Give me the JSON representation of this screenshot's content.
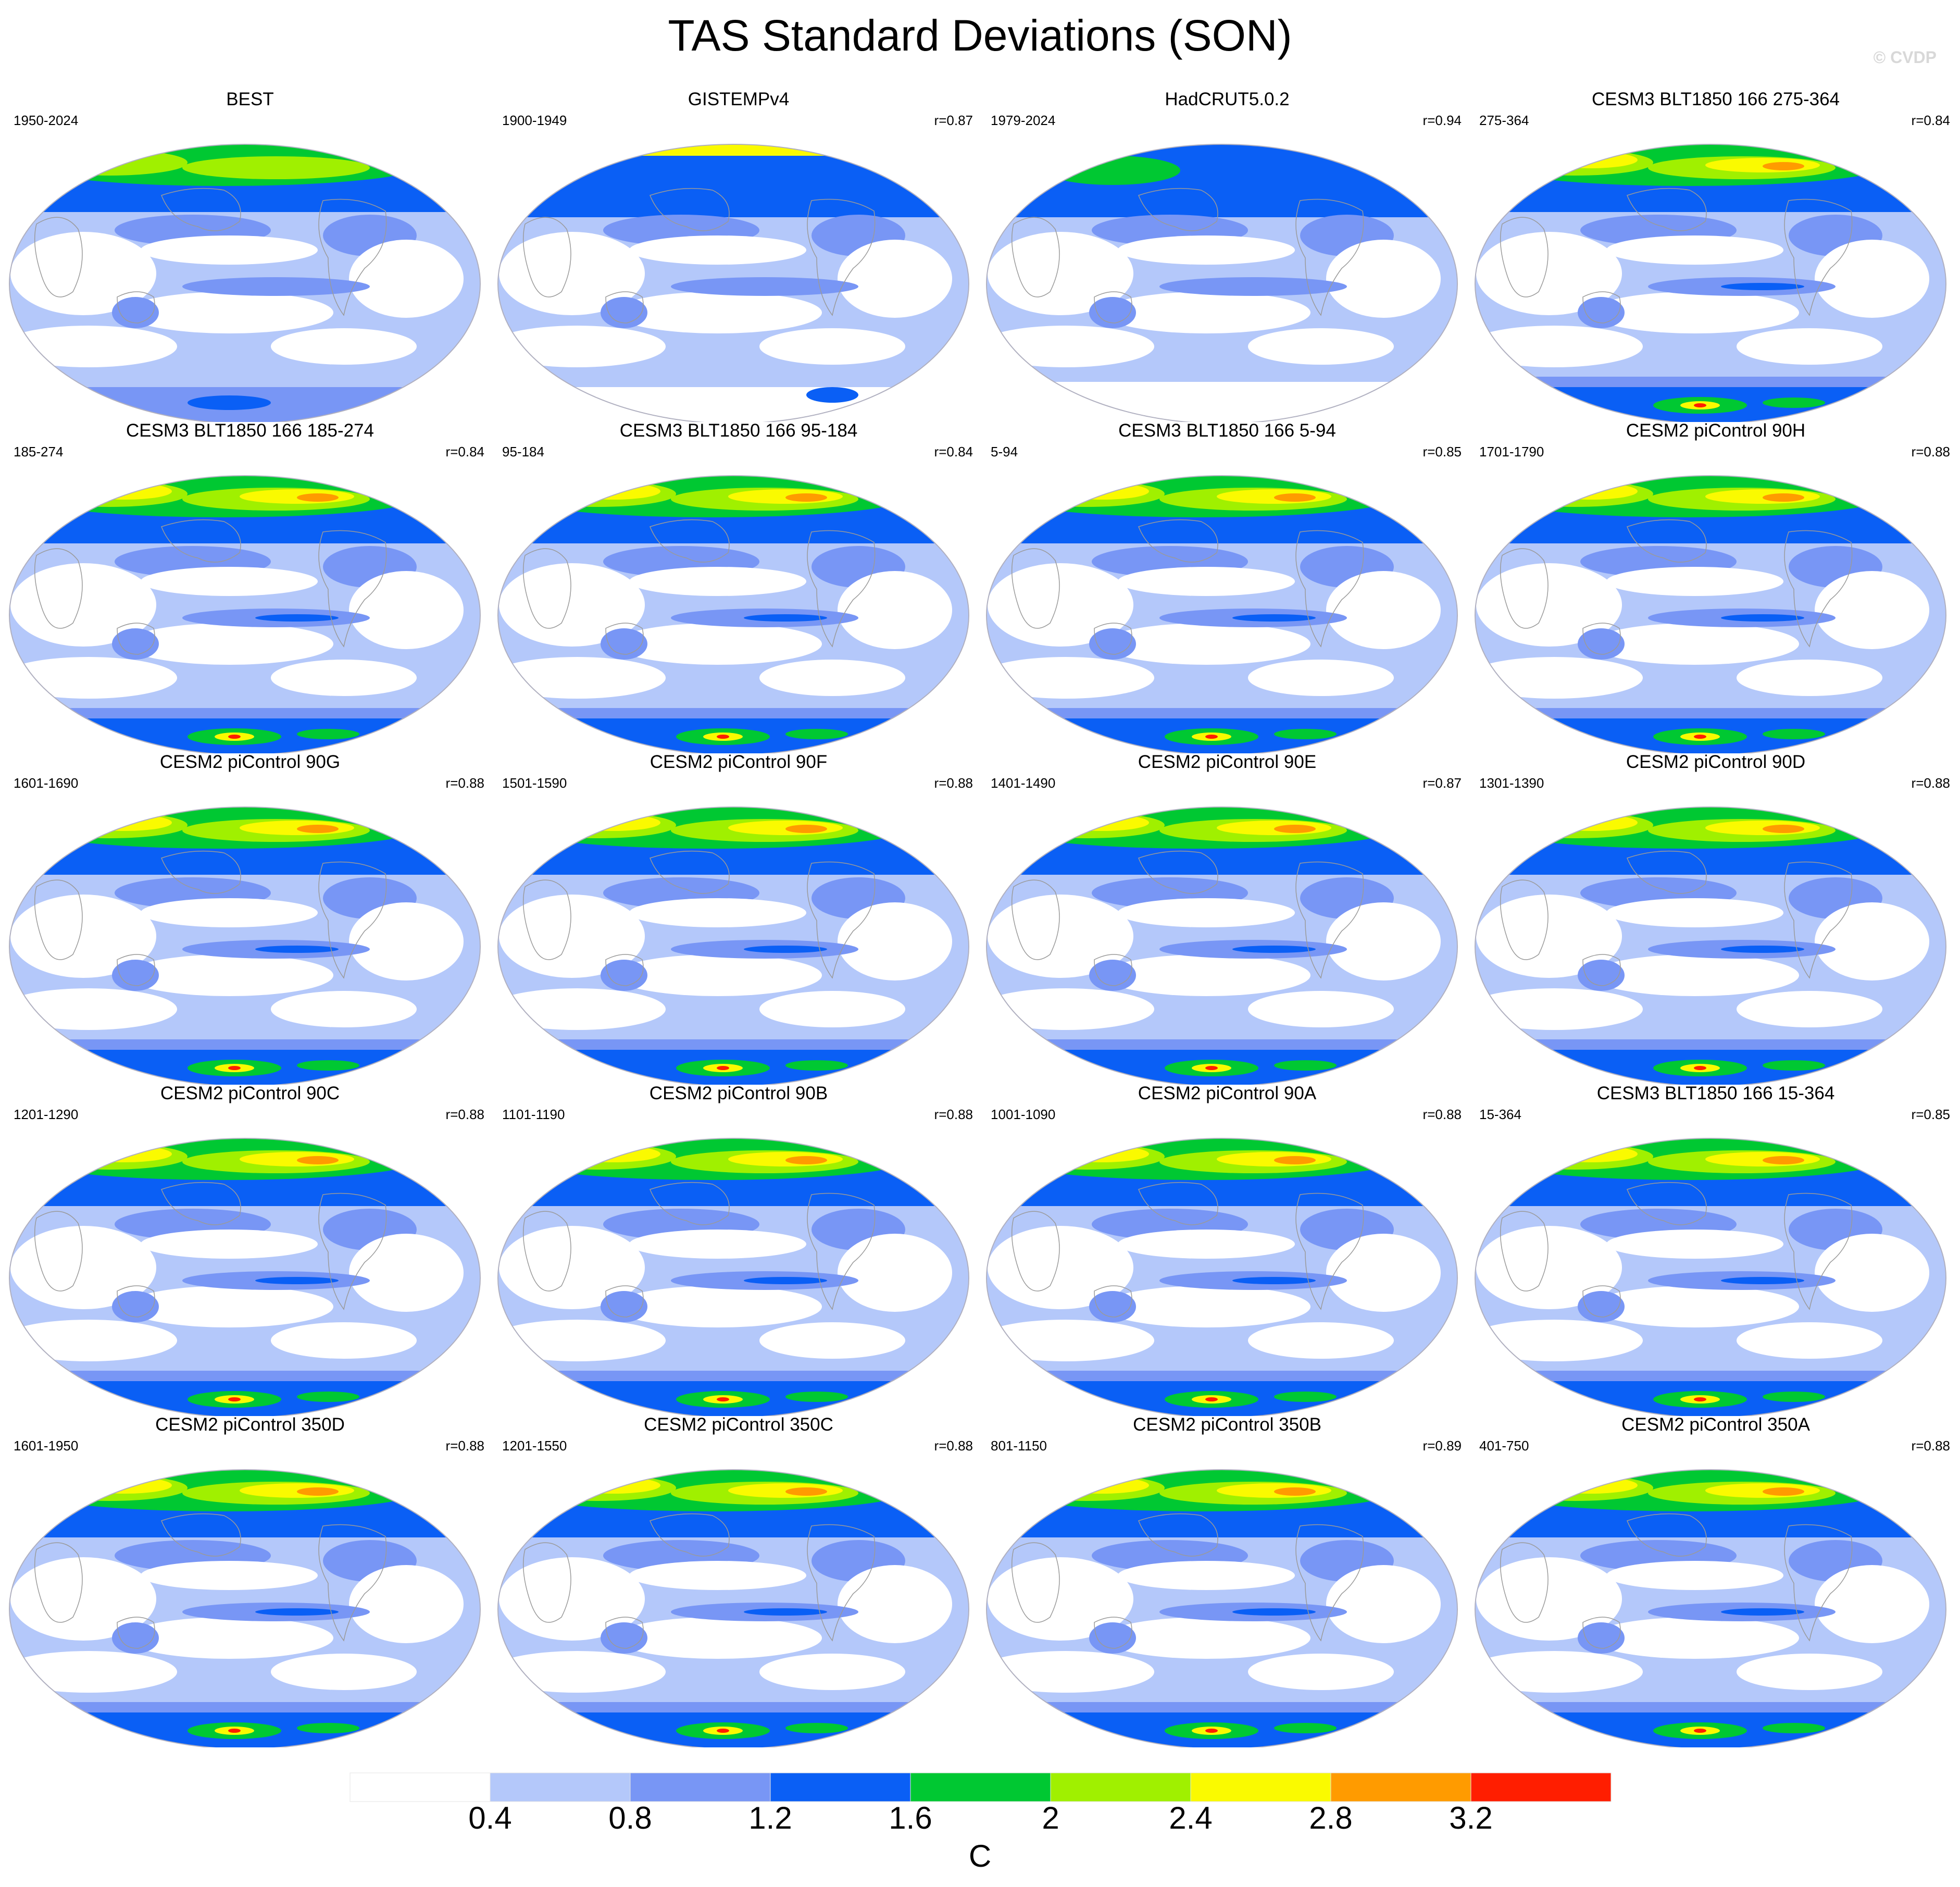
{
  "title": "TAS Standard Deviations (SON)",
  "copyright": "© CVDP",
  "colorbar": {
    "levels": [
      "0.4",
      "0.8",
      "1.2",
      "1.6",
      "2",
      "2.4",
      "2.8",
      "3.2"
    ],
    "colors": [
      "#ffffff",
      "#b4c8fa",
      "#7896f5",
      "#0a5ff5",
      "#00c832",
      "#a0f000",
      "#fafa00",
      "#ff9b00",
      "#ff1e00"
    ],
    "units": "C"
  },
  "panels": [
    {
      "title": "BEST",
      "period": "1950-2024",
      "r": "",
      "style": "best"
    },
    {
      "title": "GISTEMPv4",
      "period": "1900-1949",
      "r": "r=0.87",
      "style": "gis"
    },
    {
      "title": "HadCRUT5.0.2",
      "period": "1979-2024",
      "r": "r=0.94",
      "style": "had"
    },
    {
      "title": "CESM3 BLT1850 166 275-364",
      "period": "275-364",
      "r": "r=0.84",
      "style": "model"
    },
    {
      "title": "CESM3 BLT1850 166 185-274",
      "period": "185-274",
      "r": "r=0.84",
      "style": "model"
    },
    {
      "title": "CESM3 BLT1850 166 95-184",
      "period": "95-184",
      "r": "r=0.84",
      "style": "model"
    },
    {
      "title": "CESM3 BLT1850 166 5-94",
      "period": "5-94",
      "r": "r=0.85",
      "style": "model"
    },
    {
      "title": "CESM2 piControl 90H",
      "period": "1701-1790",
      "r": "r=0.88",
      "style": "model"
    },
    {
      "title": "CESM2 piControl 90G",
      "period": "1601-1690",
      "r": "r=0.88",
      "style": "model"
    },
    {
      "title": "CESM2 piControl 90F",
      "period": "1501-1590",
      "r": "r=0.88",
      "style": "model"
    },
    {
      "title": "CESM2 piControl 90E",
      "period": "1401-1490",
      "r": "r=0.87",
      "style": "model"
    },
    {
      "title": "CESM2 piControl 90D",
      "period": "1301-1390",
      "r": "r=0.88",
      "style": "model"
    },
    {
      "title": "CESM2 piControl 90C",
      "period": "1201-1290",
      "r": "r=0.88",
      "style": "model"
    },
    {
      "title": "CESM2 piControl 90B",
      "period": "1101-1190",
      "r": "r=0.88",
      "style": "model"
    },
    {
      "title": "CESM2 piControl 90A",
      "period": "1001-1090",
      "r": "r=0.88",
      "style": "model"
    },
    {
      "title": "CESM3 BLT1850 166 15-364",
      "period": "15-364",
      "r": "r=0.85",
      "style": "model"
    },
    {
      "title": "CESM2 piControl 350D",
      "period": "1601-1950",
      "r": "r=0.88",
      "style": "model"
    },
    {
      "title": "CESM2 piControl 350C",
      "period": "1201-1550",
      "r": "r=0.88",
      "style": "model"
    },
    {
      "title": "CESM2 piControl 350B",
      "period": "801-1150",
      "r": "r=0.89",
      "style": "model"
    },
    {
      "title": "CESM2 piControl 350A",
      "period": "401-750",
      "r": "r=0.88",
      "style": "model"
    }
  ]
}
